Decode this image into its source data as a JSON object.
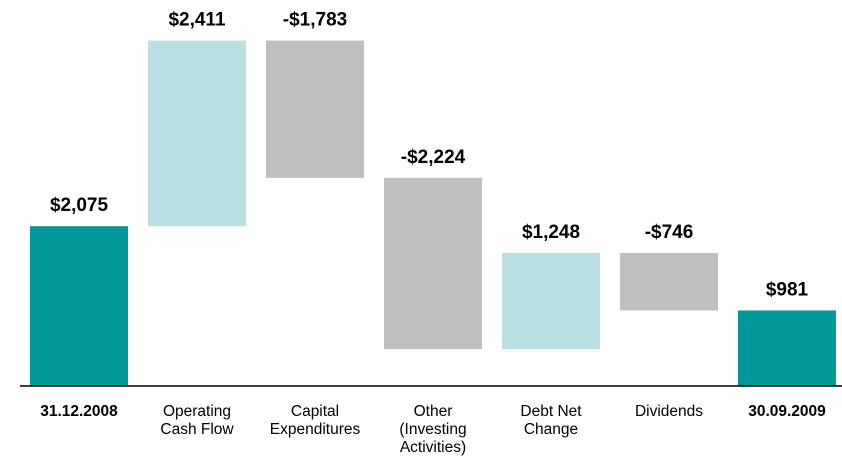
{
  "chart_data": {
    "type": "waterfall",
    "categories": [
      "31.12.2008",
      "Operating\nCash Flow",
      "Capital\nExpenditures",
      "Other\n(Investing\nActivities)",
      "Debt Net\nChange",
      "Dividends",
      "30.09.2009"
    ],
    "values": [
      2075,
      2411,
      -1783,
      -2224,
      1248,
      -746,
      981
    ],
    "value_labels": [
      "$2,075",
      "$2,411",
      "-$1,783",
      "-$2,224",
      "$1,248",
      "-$746",
      "$981"
    ],
    "totals": [
      true,
      false,
      false,
      false,
      false,
      false,
      true
    ],
    "colors": [
      "#009999",
      "#b9e0e4",
      "#bfbfbf",
      "#bfbfbf",
      "#b9e0e4",
      "#bfbfbf",
      "#009999"
    ],
    "ylim": [
      0,
      5000
    ]
  }
}
